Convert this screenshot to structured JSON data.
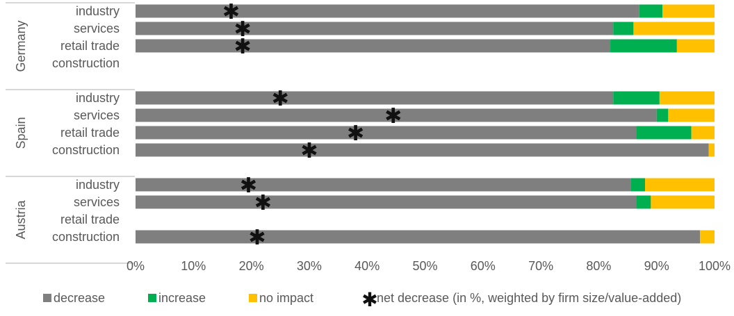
{
  "chart_data": {
    "type": "bar",
    "stacked": true,
    "orientation": "horizontal",
    "percent_axis": true,
    "xlim": [
      0,
      100
    ],
    "x_ticks": [
      "0%",
      "10%",
      "20%",
      "30%",
      "40%",
      "50%",
      "60%",
      "70%",
      "80%",
      "90%",
      "100%"
    ],
    "colors": {
      "decrease": "#7f7f7f",
      "increase": "#00b050",
      "no_impact": "#ffc000"
    },
    "groups": [
      {
        "name": "Germany",
        "rows": [
          {
            "label": "industry",
            "decrease": 87,
            "increase": 4,
            "no_impact": 9,
            "net_decrease": 16.5
          },
          {
            "label": "services",
            "decrease": 82.5,
            "increase": 3.5,
            "no_impact": 14,
            "net_decrease": 18.5
          },
          {
            "label": "retail trade",
            "decrease": 82,
            "increase": 11.5,
            "no_impact": 6.5,
            "net_decrease": 18.5
          },
          {
            "label": "construction",
            "decrease": null,
            "increase": null,
            "no_impact": null,
            "net_decrease": null
          }
        ]
      },
      {
        "name": "Spain",
        "rows": [
          {
            "label": "industry",
            "decrease": 82.5,
            "increase": 8,
            "no_impact": 9.5,
            "net_decrease": 25
          },
          {
            "label": "services",
            "decrease": 90,
            "increase": 2,
            "no_impact": 8,
            "net_decrease": 44.5
          },
          {
            "label": "retail trade",
            "decrease": 86.5,
            "increase": 9.5,
            "no_impact": 4,
            "net_decrease": 38
          },
          {
            "label": "construction",
            "decrease": 99,
            "increase": 0,
            "no_impact": 1,
            "net_decrease": 30
          }
        ]
      },
      {
        "name": "Austria",
        "rows": [
          {
            "label": "industry",
            "decrease": 85.5,
            "increase": 2.5,
            "no_impact": 12,
            "net_decrease": 19.5
          },
          {
            "label": "services",
            "decrease": 86.5,
            "increase": 2.5,
            "no_impact": 11,
            "net_decrease": 22
          },
          {
            "label": "retail trade",
            "decrease": null,
            "increase": null,
            "no_impact": null,
            "net_decrease": null
          },
          {
            "label": "construction",
            "decrease": 97.5,
            "increase": 0,
            "no_impact": 2.5,
            "net_decrease": 21
          }
        ]
      }
    ],
    "legend": {
      "position": "bottom",
      "items": [
        {
          "key": "decrease",
          "label": "decrease"
        },
        {
          "key": "increase",
          "label": "increase"
        },
        {
          "key": "no_impact",
          "label": "no impact"
        }
      ],
      "marker_symbol": "✱",
      "marker_label": "net decrease (in %, weighted by firm size/value-added)"
    }
  }
}
